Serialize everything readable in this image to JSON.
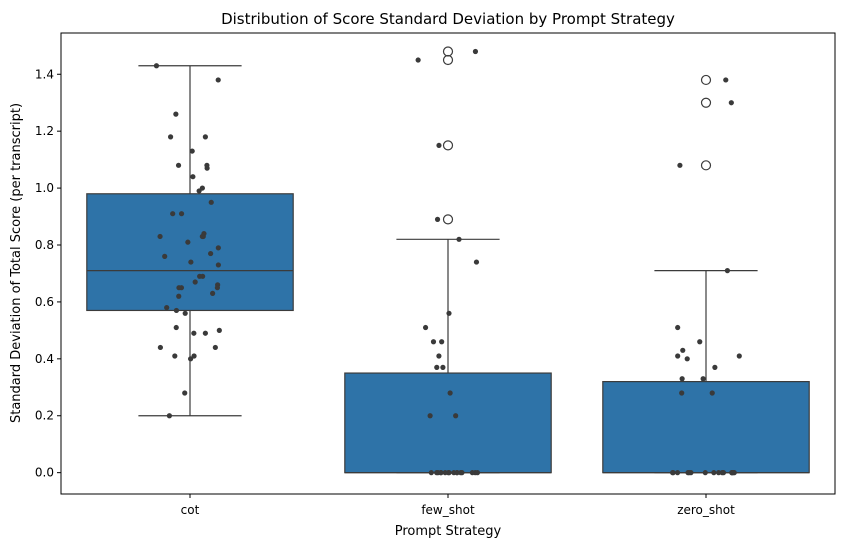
{
  "chart_data": {
    "type": "box",
    "title": "Distribution of Score Standard Deviation by Prompt Strategy",
    "xlabel": "Prompt Strategy",
    "ylabel": "Standard Deviation of Total Score (per transcript)",
    "categories": [
      "cot",
      "few_shot",
      "zero_shot"
    ],
    "ylim": [
      -0.075,
      1.545
    ],
    "yticks": [
      0.0,
      0.2,
      0.4,
      0.6,
      0.8,
      1.0,
      1.2,
      1.4
    ],
    "ytick_labels": [
      "0.0",
      "0.2",
      "0.4",
      "0.6",
      "0.8",
      "1.0",
      "1.2",
      "1.4"
    ],
    "grid": false,
    "box_color": "#2e73a8",
    "point_color": "#3a3a3a",
    "boxes": [
      {
        "category": "cot",
        "whisker_low": 0.2,
        "q1": 0.57,
        "median": 0.71,
        "q3": 0.98,
        "whisker_high": 1.43,
        "outliers": []
      },
      {
        "category": "few_shot",
        "whisker_low": 0.0,
        "q1": 0.0,
        "median": 0.0,
        "q3": 0.35,
        "whisker_high": 0.82,
        "outliers": [
          0.89,
          1.15,
          1.45,
          1.48
        ]
      },
      {
        "category": "zero_shot",
        "whisker_low": 0.0,
        "q1": 0.0,
        "median": 0.0,
        "q3": 0.32,
        "whisker_high": 0.71,
        "outliers": [
          1.08,
          1.3,
          1.38
        ]
      }
    ],
    "points": [
      {
        "category": "cot",
        "values": [
          1.43,
          1.38,
          1.26,
          1.18,
          1.18,
          1.13,
          1.08,
          1.08,
          1.07,
          1.04,
          1.0,
          0.99,
          0.95,
          0.91,
          0.91,
          0.84,
          0.83,
          0.83,
          0.83,
          0.81,
          0.79,
          0.77,
          0.76,
          0.74,
          0.73,
          0.69,
          0.69,
          0.67,
          0.66,
          0.65,
          0.65,
          0.65,
          0.63,
          0.62,
          0.58,
          0.57,
          0.56,
          0.51,
          0.5,
          0.49,
          0.49,
          0.44,
          0.44,
          0.41,
          0.41,
          0.4,
          0.28,
          0.2
        ]
      },
      {
        "category": "few_shot",
        "values": [
          1.48,
          1.45,
          1.15,
          0.89,
          0.82,
          0.74,
          0.56,
          0.51,
          0.46,
          0.46,
          0.41,
          0.37,
          0.37,
          0.28,
          0.2,
          0.2,
          0,
          0,
          0,
          0,
          0,
          0,
          0,
          0,
          0,
          0,
          0,
          0,
          0,
          0,
          0,
          0
        ]
      },
      {
        "category": "zero_shot",
        "values": [
          1.38,
          1.3,
          1.08,
          0.71,
          0.51,
          0.46,
          0.43,
          0.41,
          0.41,
          0.4,
          0.37,
          0.33,
          0.33,
          0.28,
          0.28,
          0,
          0,
          0,
          0,
          0,
          0,
          0,
          0,
          0,
          0,
          0,
          0,
          0,
          0,
          0,
          0
        ]
      }
    ]
  }
}
